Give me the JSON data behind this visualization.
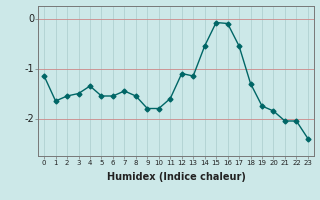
{
  "x": [
    0,
    1,
    2,
    3,
    4,
    5,
    6,
    7,
    8,
    9,
    10,
    11,
    12,
    13,
    14,
    15,
    16,
    17,
    18,
    19,
    20,
    21,
    22,
    23
  ],
  "y": [
    -1.15,
    -1.65,
    -1.55,
    -1.5,
    -1.35,
    -1.55,
    -1.55,
    -1.45,
    -1.55,
    -1.8,
    -1.8,
    -1.6,
    -1.1,
    -1.15,
    -0.55,
    -0.08,
    -0.1,
    -0.55,
    -1.3,
    -1.75,
    -1.85,
    -2.05,
    -2.05,
    -2.4
  ],
  "xlabel": "Humidex (Indice chaleur)",
  "bg_color": "#cce8e8",
  "line_color": "#006666",
  "marker_color": "#006666",
  "vgrid_color": "#aacccc",
  "hgrid_color": "#cc8888",
  "yticks": [
    0,
    -1,
    -2
  ],
  "ylim": [
    -2.75,
    0.25
  ],
  "xlim": [
    -0.5,
    23.5
  ],
  "xlabel_fontsize": 7,
  "tick_fontsize": 5,
  "ytick_fontsize": 7
}
